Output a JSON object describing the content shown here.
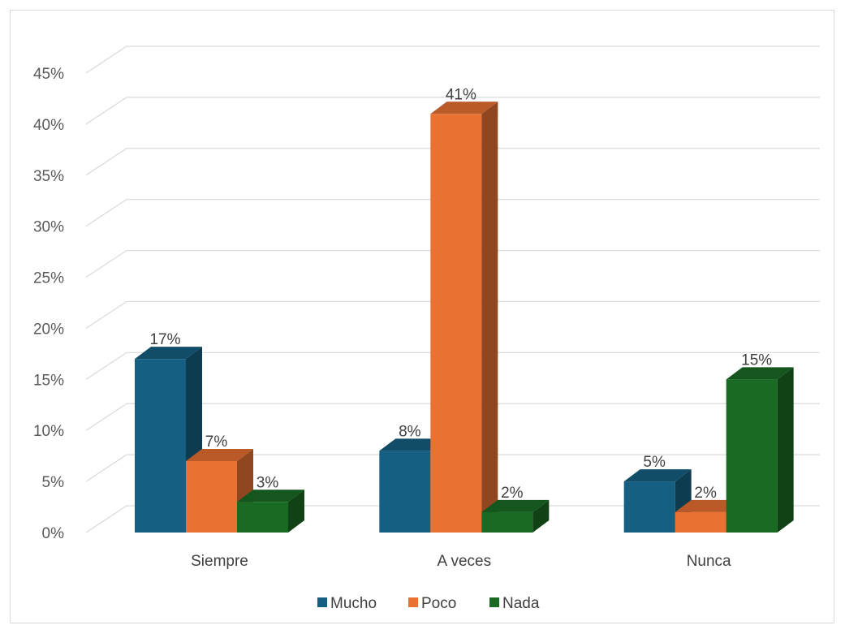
{
  "chart_data": {
    "type": "bar",
    "categories": [
      "Siempre",
      "A veces",
      "Nunca"
    ],
    "series": [
      {
        "name": "Mucho",
        "values": [
          17,
          8,
          5
        ],
        "labels": [
          "17%",
          "8%",
          "5%"
        ],
        "color": "#156082"
      },
      {
        "name": "Poco",
        "values": [
          7,
          41,
          2
        ],
        "labels": [
          "7%",
          "41%",
          "2%"
        ],
        "color": "#E97132"
      },
      {
        "name": "Nada",
        "values": [
          3,
          2,
          15
        ],
        "labels": [
          "3%",
          "2%",
          "15%"
        ],
        "color": "#196B24"
      }
    ],
    "yticks": [
      "0%",
      "5%",
      "10%",
      "15%",
      "20%",
      "25%",
      "30%",
      "35%",
      "40%",
      "45%"
    ],
    "ylim": [
      0,
      45
    ],
    "grid": true,
    "legend_position": "bottom",
    "style": "3d-clustered-column"
  }
}
